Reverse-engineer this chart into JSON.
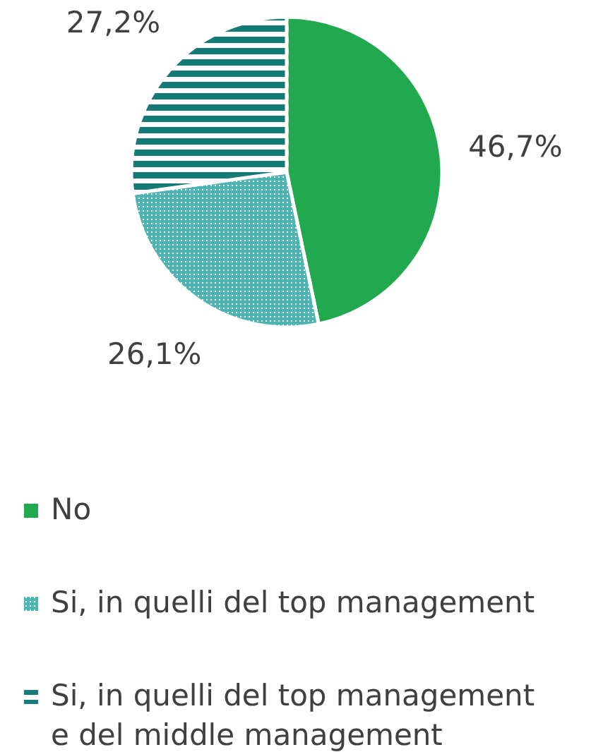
{
  "chart_data": {
    "type": "pie",
    "categories": [
      "No",
      "Si, in quelli del top management",
      "Si, in quelli del top management e del middle management"
    ],
    "values": [
      46.7,
      26.1,
      27.2
    ],
    "colors": [
      "#22a84f",
      "#4db3b3",
      "#167a78"
    ],
    "value_labels": [
      "46,7%",
      "26,1%",
      "27,2%"
    ],
    "legend": "bottom"
  }
}
